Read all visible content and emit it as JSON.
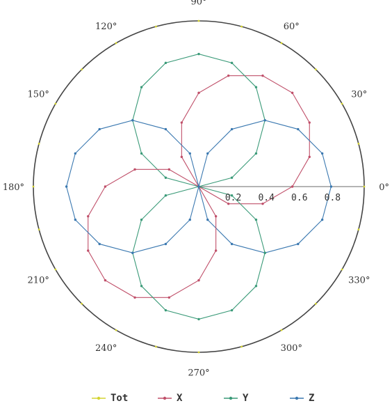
{
  "chart_data": {
    "type": "polar-line",
    "title": "",
    "angle_unit": "degrees",
    "radial_range": [
      0,
      1.0
    ],
    "radial_ticks": [
      "0.2",
      "0.4",
      "0.6",
      "0.8"
    ],
    "radial_tick_values": [
      0.2,
      0.4,
      0.6,
      0.8
    ],
    "angle_ticks": [
      "0°",
      "30°",
      "60°",
      "90°",
      "120°",
      "150°",
      "180°",
      "210°",
      "240°",
      "270°",
      "300°",
      "330°"
    ],
    "angle_tick_values": [
      0,
      30,
      60,
      90,
      120,
      150,
      180,
      210,
      240,
      270,
      300,
      330
    ],
    "grid": false,
    "radial_axis_line": true,
    "legend_position": "bottom",
    "series": [
      {
        "name": "Tot",
        "color": "#d4d430",
        "shape": "circle",
        "amplitude": 1.0,
        "phase_deg": 0,
        "point_step_deg": 15
      },
      {
        "name": "X",
        "color": "#c0506a",
        "shape": "cosine-lobe",
        "amplitude": 0.8,
        "phase_deg": 45,
        "point_step_deg": 15
      },
      {
        "name": "Y",
        "color": "#3a9a78",
        "shape": "cosine-lobe",
        "amplitude": 0.8,
        "phase_deg": 90,
        "point_step_deg": 15
      },
      {
        "name": "Z",
        "color": "#3a78b0",
        "shape": "cosine-lobe",
        "amplitude": 0.8,
        "phase_deg": 0,
        "point_step_deg": 15
      },
      {
        "name": "X",
        "color": "#c0506a",
        "shape": "cosine-lobe",
        "amplitude": 0.8,
        "phase_deg": 225,
        "point_step_deg": 15,
        "in_legend": false
      },
      {
        "name": "Y",
        "color": "#3a9a78",
        "shape": "cosine-lobe",
        "amplitude": 0.8,
        "phase_deg": 270,
        "point_step_deg": 15,
        "in_legend": false
      },
      {
        "name": "Z",
        "color": "#3a78b0",
        "shape": "cosine-lobe",
        "amplitude": 0.8,
        "phase_deg": 180,
        "point_step_deg": 15,
        "in_legend": false
      }
    ],
    "legend": [
      {
        "label": "Tot",
        "color": "#d4d430"
      },
      {
        "label": "X",
        "color": "#c0506a"
      },
      {
        "label": "Y",
        "color": "#3a9a78"
      },
      {
        "label": "Z",
        "color": "#3a78b0"
      }
    ],
    "outer_circle_color": "#444444",
    "axis_color": "#888888"
  }
}
